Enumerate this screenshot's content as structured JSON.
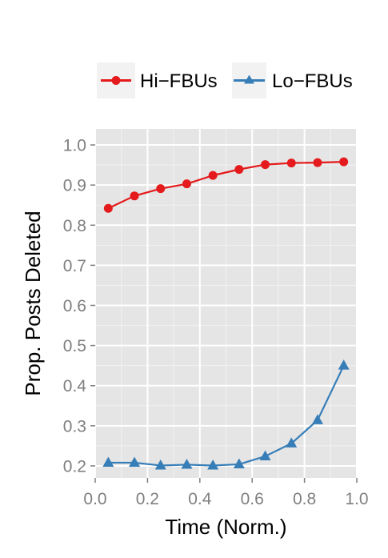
{
  "chart_data": {
    "type": "line",
    "title": "",
    "xlabel": "Time (Norm.)",
    "ylabel": "Prop. Posts Deleted",
    "xlim": [
      0.0,
      1.0
    ],
    "ylim": [
      0.17,
      1.04
    ],
    "xticks": [
      0.0,
      0.2,
      0.4,
      0.6,
      0.8,
      1.0
    ],
    "xtick_labels": [
      "0.0",
      "0.2",
      "0.4",
      "0.6",
      "0.8",
      "1.0"
    ],
    "yticks": [
      0.2,
      0.3,
      0.4,
      0.5,
      0.6,
      0.7,
      0.8,
      0.9,
      1.0
    ],
    "ytick_labels": [
      "0.2",
      "0.3",
      "0.4",
      "0.5",
      "0.6",
      "0.7",
      "0.8",
      "0.9",
      "1.0"
    ],
    "grid": true,
    "legend_position": "top",
    "x": [
      0.05,
      0.15,
      0.25,
      0.35,
      0.45,
      0.55,
      0.65,
      0.75,
      0.85,
      0.95
    ],
    "series": [
      {
        "name": "Hi−FBUs",
        "marker": "circle",
        "color": "#e41a1c",
        "values": [
          0.842,
          0.873,
          0.891,
          0.903,
          0.924,
          0.939,
          0.951,
          0.955,
          0.956,
          0.958
        ]
      },
      {
        "name": "Lo−FBUs",
        "marker": "triangle",
        "color": "#377eb8",
        "values": [
          0.208,
          0.208,
          0.201,
          0.203,
          0.201,
          0.204,
          0.224,
          0.256,
          0.314,
          0.45
        ]
      }
    ]
  },
  "colors": {
    "panel_background": "#e5e5e5",
    "grid_major": "#ffffff",
    "grid_minor": "#f2f2f2",
    "legend_key_background": "#f2f2f2",
    "tick_color": "#7f7f7f"
  }
}
